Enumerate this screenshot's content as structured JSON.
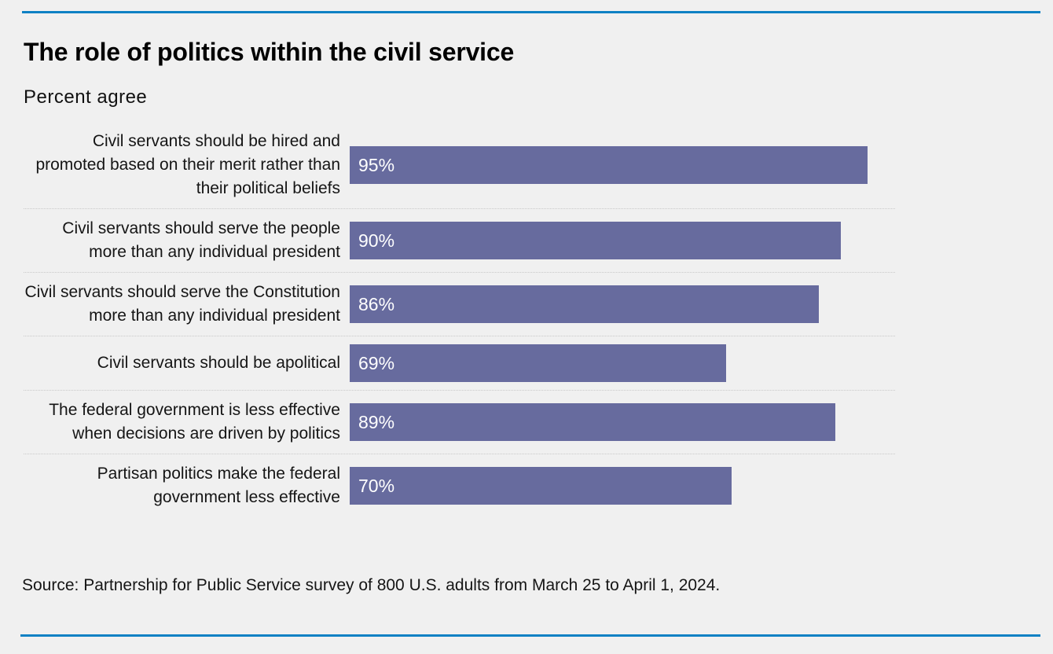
{
  "page": {
    "title": "The role of politics within the civil service",
    "subtitle": "Percent agree",
    "source": "Source: Partnership for Public Service survey of 800 U.S. adults from March 25 to April 1, 2024."
  },
  "colors": {
    "background": "#f0f0f0",
    "bar": "#676b9e",
    "rule": "#0e81c4",
    "value_label": "#ffffff",
    "separator": "#c9c9c9"
  },
  "chart_data": {
    "type": "bar",
    "orientation": "horizontal",
    "title": "The role of politics within the civil service",
    "subtitle": "Percent agree",
    "categories": [
      "Civil servants should be hired and promoted based on their merit rather than their political beliefs",
      "Civil servants should serve the people more than any individual president",
      "Civil servants should serve the Constitution more than any individual president",
      "Civil servants should be apolitical",
      "The federal government is less effective when decisions are driven by politics",
      "Partisan politics make the federal government less effective"
    ],
    "values": [
      95,
      90,
      86,
      69,
      89,
      70
    ],
    "value_suffix": "%",
    "value_label_position": "inside-left",
    "xlim": [
      0,
      100
    ],
    "grid": false,
    "legend": false
  }
}
